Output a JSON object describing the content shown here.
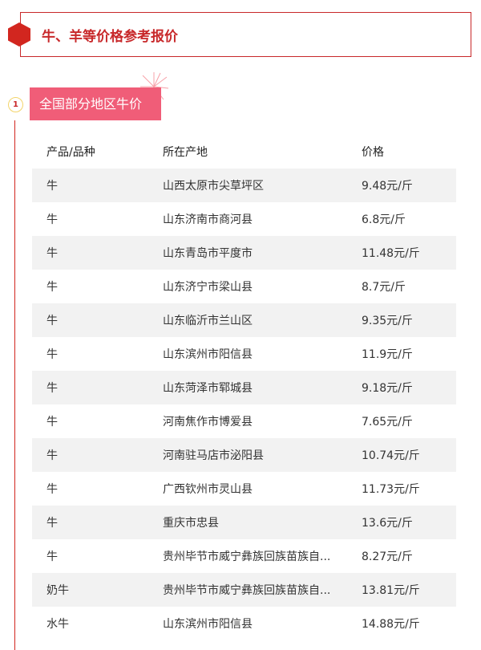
{
  "header": {
    "title": "牛、羊等价格参考报价"
  },
  "section": {
    "number": "1",
    "title": "全国部分地区牛价"
  },
  "table": {
    "columns": [
      "产品/品种",
      "所在产地",
      "价格"
    ],
    "rows": [
      [
        "牛",
        "山西太原市尖草坪区",
        "9.48元/斤"
      ],
      [
        "牛",
        "山东济南市商河县",
        "6.8元/斤"
      ],
      [
        "牛",
        "山东青岛市平度市",
        "11.48元/斤"
      ],
      [
        "牛",
        "山东济宁市梁山县",
        "8.7元/斤"
      ],
      [
        "牛",
        "山东临沂市兰山区",
        "9.35元/斤"
      ],
      [
        "牛",
        "山东滨州市阳信县",
        "11.9元/斤"
      ],
      [
        "牛",
        "山东菏泽市郓城县",
        "9.18元/斤"
      ],
      [
        "牛",
        "河南焦作市博爱县",
        "7.65元/斤"
      ],
      [
        "牛",
        "河南驻马店市泌阳县",
        "10.74元/斤"
      ],
      [
        "牛",
        "广西钦州市灵山县",
        "11.73元/斤"
      ],
      [
        "牛",
        "重庆市忠县",
        "13.6元/斤"
      ],
      [
        "牛",
        "贵州毕节市威宁彝族回族苗族自...",
        "8.27元/斤"
      ],
      [
        "奶牛",
        "贵州毕节市威宁彝族回族苗族自...",
        "13.81元/斤"
      ],
      [
        "水牛",
        "山东滨州市阳信县",
        "14.88元/斤"
      ]
    ]
  },
  "colors": {
    "accent": "#c8282a",
    "tag": "#f05d78",
    "stripe": "#f2f2f2"
  }
}
